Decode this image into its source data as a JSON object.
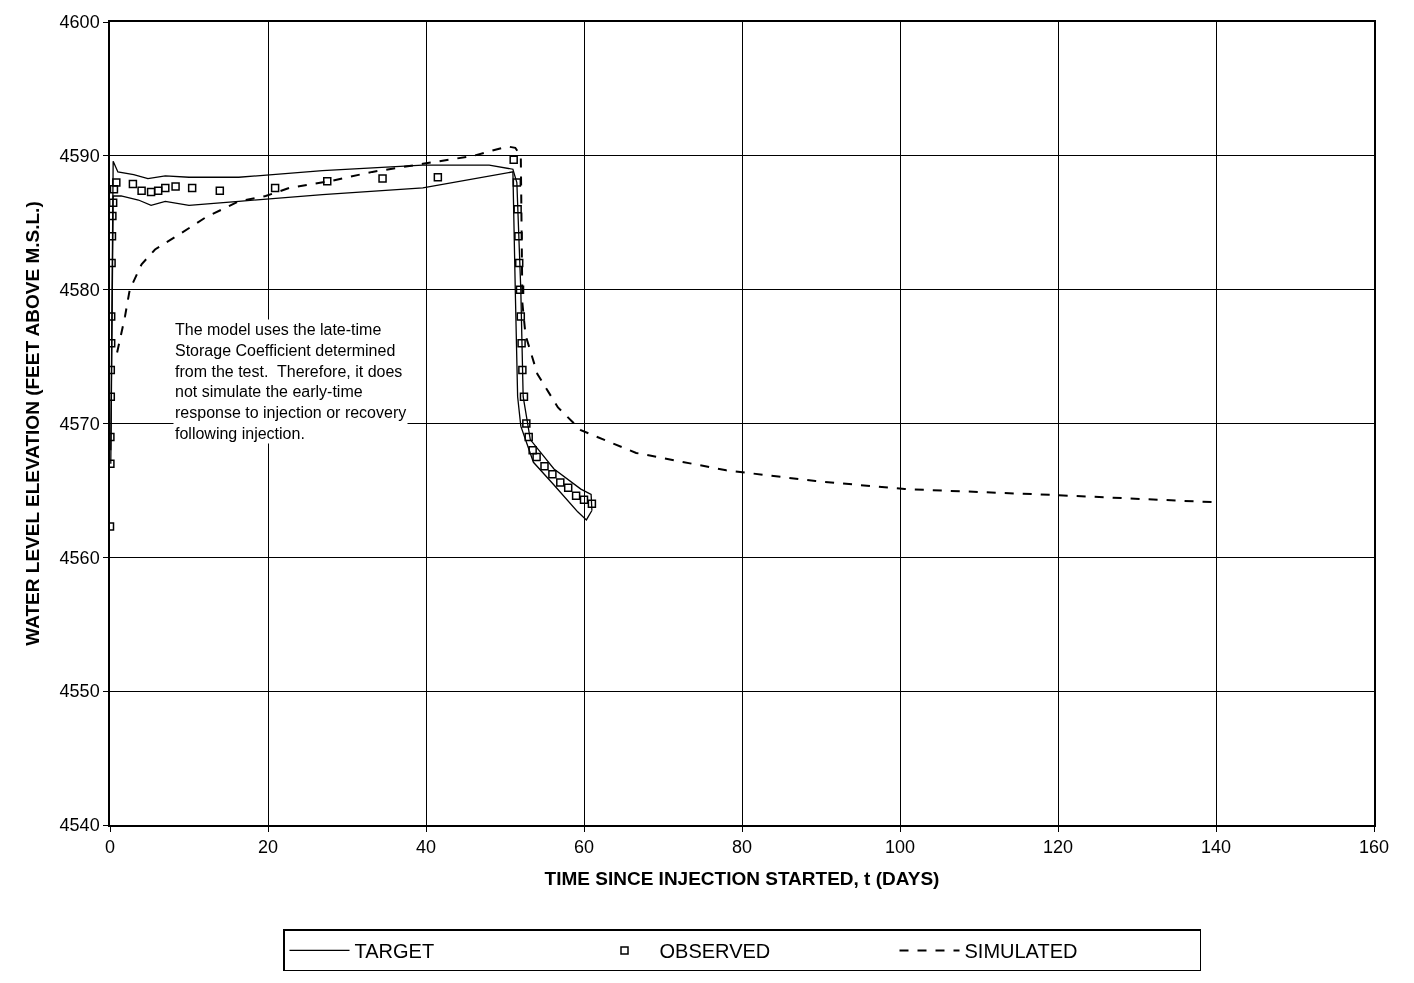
{
  "chart_data": {
    "type": "line",
    "xlabel": "TIME SINCE INJECTION STARTED, t (DAYS)",
    "ylabel": "WATER LEVEL ELEVATION (FEET ABOVE M.S.L.)",
    "xlim": [
      0,
      160
    ],
    "xticks": [
      0,
      20,
      40,
      60,
      80,
      100,
      120,
      140,
      160
    ],
    "ylim": [
      4540,
      4600
    ],
    "yticks": [
      4540,
      4550,
      4560,
      4570,
      4580,
      4590,
      4600
    ],
    "grid": true,
    "legend": "bottom",
    "annotations": [
      "The model uses the late-time\nStorage Coefficient determined\nfrom the test.  Therefore, it does\nnot simulate the early-time\nresponse to injection or recovery\nfollowing injection."
    ],
    "series": [
      {
        "name": "TARGET",
        "color": "#000000",
        "line_style": "solid",
        "x": [
          0.1,
          0.4,
          1,
          3,
          4.8,
          7,
          10,
          16.3,
          26.9,
          39.6,
          48,
          51,
          51.5,
          52,
          52.3,
          53.2,
          56.2,
          59.6,
          60.9,
          61
        ],
        "values": [
          4568,
          4589.6,
          4588.8,
          4588.6,
          4588.3,
          4588.5,
          4588.4,
          4588.4,
          4588.9,
          4589.3,
          4589.3,
          4589,
          4588,
          4580,
          4572,
          4568.8,
          4566.6,
          4565.1,
          4564.7,
          4563.5
        ]
      },
      {
        "color": "#000000",
        "line_style": "solid",
        "x": [
          0.1,
          0.4,
          1.4,
          3.6,
          5.2,
          7,
          10,
          16.3,
          26.9,
          39.6,
          51,
          51.3,
          51.6,
          52,
          53.6,
          56.2,
          59.2,
          60.3,
          61
        ],
        "values": [
          4567,
          4587,
          4587,
          4586.7,
          4586.3,
          4586.6,
          4586.3,
          4586.6,
          4587.1,
          4587.6,
          4588.8,
          4580,
          4572,
          4569.8,
          4567.1,
          4565.4,
          4563.4,
          4562.8,
          4563.5
        ]
      },
      {
        "name": "OBSERVED",
        "type": "scatter",
        "color": "#000000",
        "marker": "square",
        "x": [
          0,
          0.05,
          0.05,
          0.1,
          0.1,
          0.15,
          0.15,
          0.2,
          0.25,
          0.3,
          0.4,
          0.5,
          0.8,
          2.9,
          4,
          5.2,
          6.1,
          7,
          8.3,
          10.4,
          13.9,
          20.9,
          27.5,
          34.5,
          41.5,
          51.1,
          51.5,
          51.6,
          51.7,
          51.8,
          51.9,
          52,
          52.1,
          52.2,
          52.4,
          52.7,
          53,
          53.5,
          54,
          55,
          56,
          57,
          58,
          59,
          60,
          61
        ],
        "values": [
          4562.3,
          4567,
          4569,
          4572,
          4574,
          4576,
          4578,
          4582,
          4584,
          4585.5,
          4586.5,
          4587.5,
          4588,
          4587.9,
          4587.4,
          4587.3,
          4587.4,
          4587.6,
          4587.7,
          4587.6,
          4587.4,
          4587.6,
          4588.1,
          4588.3,
          4588.4,
          4589.7,
          4588,
          4586,
          4584,
          4582,
          4580,
          4578,
          4576,
          4574,
          4572,
          4570,
          4569,
          4568,
          4567.5,
          4566.8,
          4566.2,
          4565.6,
          4565.2,
          4564.6,
          4564.3,
          4564
        ]
      },
      {
        "name": "SIMULATED",
        "color": "#000000",
        "line_style": "dashed",
        "x": [
          0.9,
          1.9,
          2.5,
          4,
          5.7,
          8.7,
          12.1,
          16.3,
          19.7,
          22.7,
          27.8,
          33.2,
          39.6,
          46,
          50.3,
          51.3,
          52,
          52.2,
          52.6,
          54.1,
          56.7,
          59.6,
          66.6,
          78,
          89.3,
          100.6,
          117.7,
          140.5
        ],
        "values": [
          4575.3,
          4578,
          4580,
          4581.9,
          4583,
          4584.1,
          4585.4,
          4586.6,
          4587,
          4587.6,
          4588.1,
          4588.8,
          4589.4,
          4590,
          4590.7,
          4590.6,
          4590,
          4579,
          4576.6,
          4573.7,
          4571.2,
          4569.5,
          4567.8,
          4566.5,
          4565.7,
          4565.1,
          4564.7,
          4564.1
        ]
      }
    ]
  }
}
